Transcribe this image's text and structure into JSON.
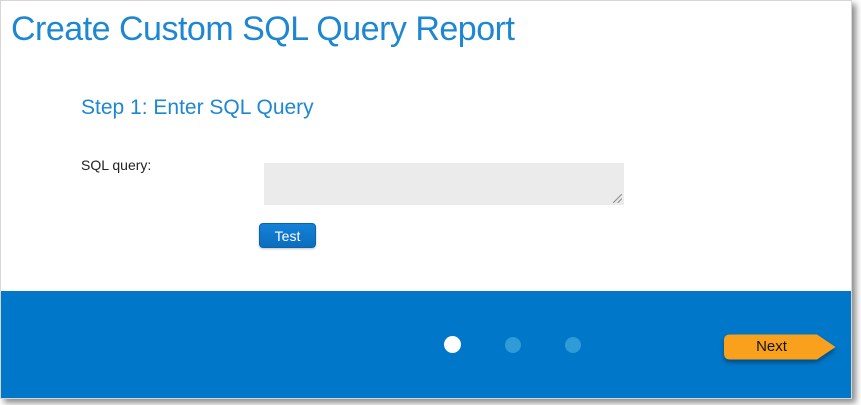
{
  "page": {
    "title": "Create Custom SQL Query Report"
  },
  "step": {
    "heading": "Step 1: Enter SQL Query"
  },
  "form": {
    "sql_query_label": "SQL query:",
    "sql_query_value": "",
    "test_button_label": "Test"
  },
  "footer": {
    "next_button_label": "Next",
    "progress": {
      "current_step": 1,
      "total_steps": 3
    }
  },
  "colors": {
    "heading_blue": "#1e87d2",
    "footer_blue": "#0077c8",
    "inactive_dot_blue": "#2f9bd7",
    "active_dot_white": "#ffffff",
    "next_orange": "#f9a11d",
    "test_blue_top": "#1482d8",
    "test_blue_bottom": "#0b6dbd",
    "textarea_gray": "#ebebeb"
  }
}
